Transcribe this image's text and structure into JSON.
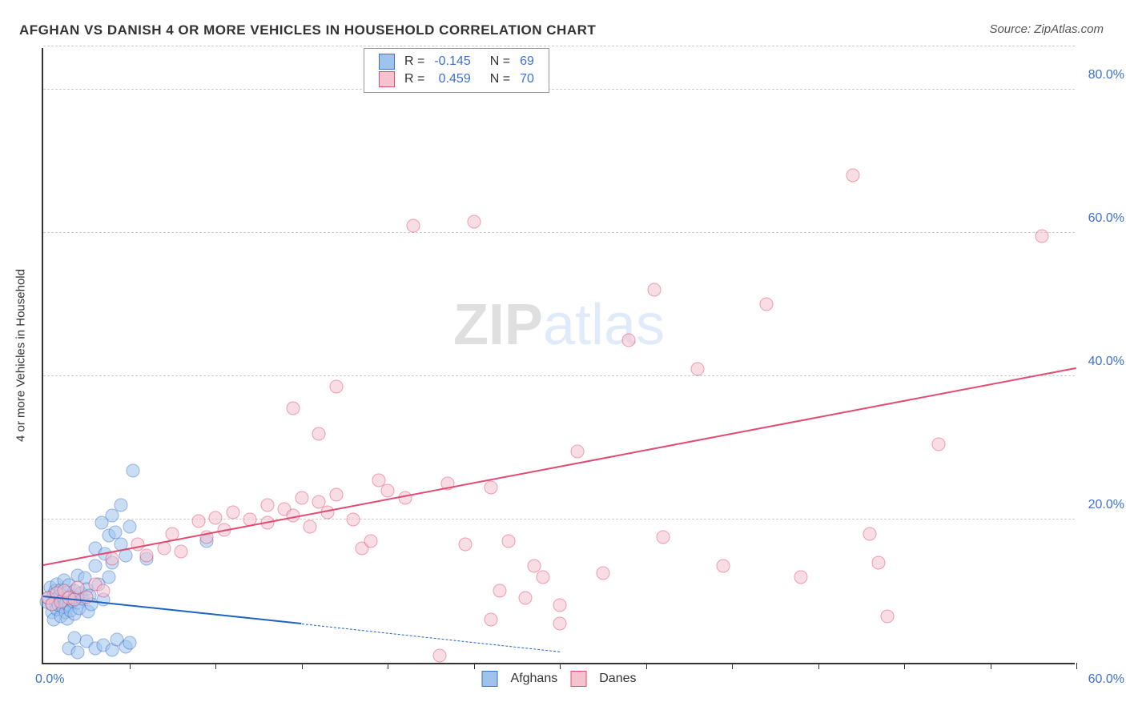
{
  "title": "AFGHAN VS DANISH 4 OR MORE VEHICLES IN HOUSEHOLD CORRELATION CHART",
  "source": "Source: ZipAtlas.com",
  "yaxis_title": "4 or more Vehicles in Household",
  "watermark": {
    "part1": "ZIP",
    "part2": "atlas"
  },
  "chart": {
    "type": "scatter",
    "xlim": [
      0,
      60
    ],
    "ylim": [
      0,
      86
    ],
    "xlabel_min": "0.0%",
    "xlabel_max": "60.0%",
    "yticks": [
      {
        "v": 20,
        "label": "20.0%"
      },
      {
        "v": 40,
        "label": "40.0%"
      },
      {
        "v": 60,
        "label": "60.0%"
      },
      {
        "v": 80,
        "label": "80.0%"
      }
    ],
    "xtick_step": 5,
    "background_color": "#ffffff",
    "grid_color": "#cccccc",
    "axis_color": "#333333",
    "tick_label_color": "#3d72c9",
    "marker_radius": 8.5,
    "marker_border_width": 1.2,
    "marker_opacity": 0.55,
    "series": [
      {
        "name": "Afghans",
        "color_fill": "#9ec4ed",
        "color_border": "#3d72c9",
        "line_color": "#1e63c4",
        "line_width": 2.5,
        "line_solid": {
          "x1": 0,
          "y1": 9.2,
          "x2": 15,
          "y2": 5.4
        },
        "line_dash": {
          "x1": 15,
          "y1": 5.4,
          "x2": 30,
          "y2": 1.5
        },
        "points": [
          [
            0.2,
            8.5
          ],
          [
            0.3,
            9.0
          ],
          [
            0.4,
            10.5
          ],
          [
            0.5,
            7.0
          ],
          [
            0.5,
            8.2
          ],
          [
            0.6,
            9.5
          ],
          [
            0.6,
            6.0
          ],
          [
            0.7,
            10.0
          ],
          [
            0.7,
            8.8
          ],
          [
            0.8,
            7.5
          ],
          [
            0.8,
            11.0
          ],
          [
            0.9,
            8.0
          ],
          [
            0.9,
            9.2
          ],
          [
            1.0,
            6.5
          ],
          [
            1.0,
            10.2
          ],
          [
            1.1,
            8.7
          ],
          [
            1.1,
            7.8
          ],
          [
            1.2,
            9.0
          ],
          [
            1.2,
            11.5
          ],
          [
            1.3,
            8.3
          ],
          [
            1.3,
            7.0
          ],
          [
            1.4,
            9.8
          ],
          [
            1.4,
            6.2
          ],
          [
            1.5,
            10.8
          ],
          [
            1.5,
            8.0
          ],
          [
            1.6,
            9.3
          ],
          [
            1.6,
            7.3
          ],
          [
            1.7,
            8.6
          ],
          [
            1.8,
            10.0
          ],
          [
            1.8,
            6.8
          ],
          [
            1.9,
            9.1
          ],
          [
            2.0,
            8.4
          ],
          [
            2.0,
            12.2
          ],
          [
            2.1,
            7.6
          ],
          [
            2.2,
            9.7
          ],
          [
            2.3,
            8.9
          ],
          [
            2.4,
            11.8
          ],
          [
            2.5,
            10.3
          ],
          [
            2.6,
            7.2
          ],
          [
            2.7,
            9.4
          ],
          [
            2.8,
            8.1
          ],
          [
            3.0,
            13.5
          ],
          [
            3.0,
            16.0
          ],
          [
            3.2,
            10.9
          ],
          [
            3.4,
            19.5
          ],
          [
            3.5,
            8.8
          ],
          [
            3.6,
            15.2
          ],
          [
            3.8,
            17.8
          ],
          [
            3.8,
            12.0
          ],
          [
            4.0,
            20.5
          ],
          [
            4.0,
            14.0
          ],
          [
            4.2,
            18.2
          ],
          [
            4.5,
            16.5
          ],
          [
            4.5,
            22.0
          ],
          [
            4.8,
            15.0
          ],
          [
            5.0,
            19.0
          ],
          [
            5.2,
            26.8
          ],
          [
            6.0,
            14.5
          ],
          [
            2.5,
            3.0
          ],
          [
            3.0,
            2.0
          ],
          [
            3.5,
            2.5
          ],
          [
            4.0,
            1.8
          ],
          [
            4.3,
            3.2
          ],
          [
            4.8,
            2.2
          ],
          [
            5.0,
            2.8
          ],
          [
            1.5,
            2.0
          ],
          [
            1.8,
            3.5
          ],
          [
            2.0,
            1.5
          ],
          [
            9.5,
            17.0
          ]
        ]
      },
      {
        "name": "Danes",
        "color_fill": "#f5c2cf",
        "color_border": "#e24b71",
        "line_color": "#e24b71",
        "line_width": 2.3,
        "line_solid": {
          "x1": 0,
          "y1": 13.5,
          "x2": 60,
          "y2": 41.0
        },
        "points": [
          [
            0.3,
            9.0
          ],
          [
            0.5,
            8.2
          ],
          [
            0.8,
            9.7
          ],
          [
            1.0,
            8.5
          ],
          [
            1.2,
            10.0
          ],
          [
            1.5,
            9.0
          ],
          [
            1.8,
            8.8
          ],
          [
            2.0,
            10.5
          ],
          [
            2.5,
            9.2
          ],
          [
            3.0,
            11.0
          ],
          [
            3.5,
            10.0
          ],
          [
            4.0,
            14.5
          ],
          [
            5.5,
            16.5
          ],
          [
            6.0,
            15.0
          ],
          [
            7.0,
            16.0
          ],
          [
            7.5,
            18.0
          ],
          [
            8.0,
            15.5
          ],
          [
            9.0,
            19.8
          ],
          [
            9.5,
            17.5
          ],
          [
            10.0,
            20.2
          ],
          [
            10.5,
            18.5
          ],
          [
            11.0,
            21.0
          ],
          [
            12.0,
            20.0
          ],
          [
            13.0,
            22.0
          ],
          [
            13.0,
            19.5
          ],
          [
            14.0,
            21.5
          ],
          [
            14.5,
            20.5
          ],
          [
            15.0,
            23.0
          ],
          [
            15.5,
            19.0
          ],
          [
            16.0,
            22.5
          ],
          [
            16.5,
            21.0
          ],
          [
            17.0,
            23.5
          ],
          [
            18.0,
            20.0
          ],
          [
            18.5,
            16.0
          ],
          [
            19.0,
            17.0
          ],
          [
            14.5,
            35.5
          ],
          [
            16.0,
            32.0
          ],
          [
            17.0,
            38.5
          ],
          [
            19.5,
            25.5
          ],
          [
            20.0,
            24.0
          ],
          [
            21.0,
            23.0
          ],
          [
            23.5,
            25.0
          ],
          [
            24.5,
            16.5
          ],
          [
            26.0,
            24.5
          ],
          [
            26.5,
            10.0
          ],
          [
            26.0,
            6.0
          ],
          [
            27.0,
            17.0
          ],
          [
            28.0,
            9.0
          ],
          [
            28.5,
            13.5
          ],
          [
            29.0,
            12.0
          ],
          [
            30.0,
            8.0
          ],
          [
            30.0,
            5.5
          ],
          [
            31.0,
            29.5
          ],
          [
            32.5,
            12.5
          ],
          [
            34.0,
            45.0
          ],
          [
            35.5,
            52.0
          ],
          [
            36.0,
            17.5
          ],
          [
            38.0,
            41.0
          ],
          [
            39.5,
            13.5
          ],
          [
            42.0,
            50.0
          ],
          [
            44.0,
            12.0
          ],
          [
            47.0,
            68.0
          ],
          [
            48.5,
            14.0
          ],
          [
            48.0,
            18.0
          ],
          [
            49.0,
            6.5
          ],
          [
            52.0,
            30.5
          ],
          [
            58.0,
            59.5
          ],
          [
            21.5,
            61.0
          ],
          [
            25.0,
            61.5
          ],
          [
            23.0,
            1.0
          ]
        ]
      }
    ]
  },
  "stats_legend": {
    "rows": [
      {
        "swatch_fill": "#9ec4ed",
        "swatch_border": "#3d72c9",
        "r_label": "R =",
        "r_val": "-0.145",
        "n_label": "N =",
        "n_val": "69"
      },
      {
        "swatch_fill": "#f5c2cf",
        "swatch_border": "#e24b71",
        "r_label": "R =",
        "r_val": "0.459",
        "n_label": "N =",
        "n_val": "70"
      }
    ],
    "label_color": "#333333",
    "value_color": "#3d72c9"
  },
  "bottom_legend": [
    {
      "swatch_fill": "#9ec4ed",
      "swatch_border": "#3d72c9",
      "label": "Afghans"
    },
    {
      "swatch_fill": "#f5c2cf",
      "swatch_border": "#e24b71",
      "label": "Danes"
    }
  ]
}
